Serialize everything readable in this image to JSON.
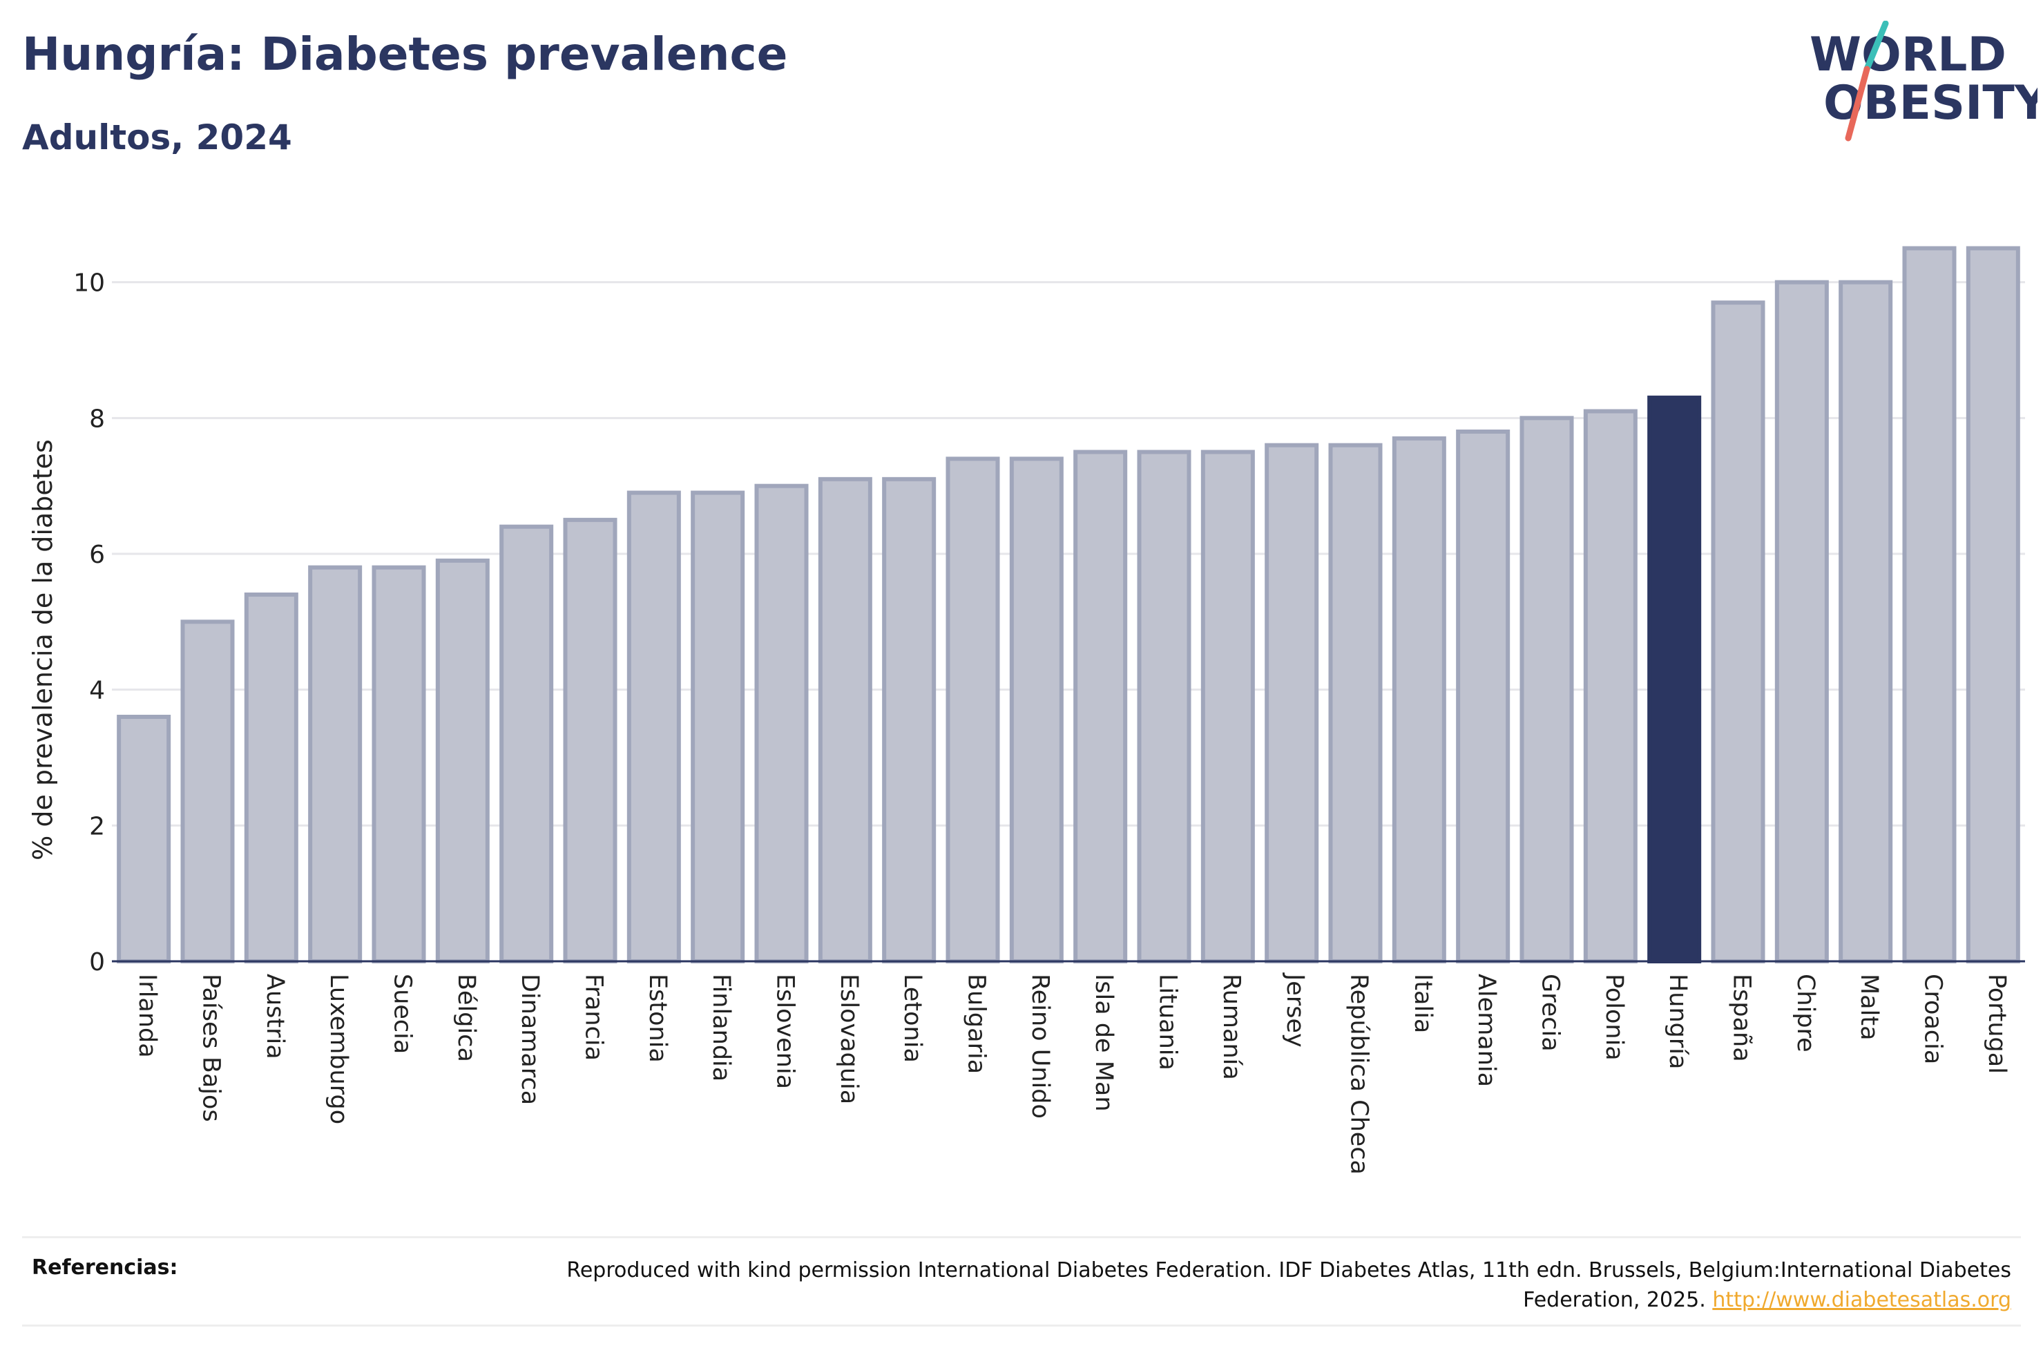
{
  "header": {
    "title": "Hungría: Diabetes prevalence",
    "subtitle": "Adultos, 2024"
  },
  "logo": {
    "line1": "WORLD",
    "line2": "OBESITY",
    "slash_colors": [
      "#3bbfb8",
      "#e8685a"
    ]
  },
  "chart_data": {
    "type": "bar",
    "categories": [
      "Irlanda",
      "Países Bajos",
      "Austria",
      "Luxemburgo",
      "Suecia",
      "Bélgica",
      "Dinamarca",
      "Francia",
      "Estonia",
      "Finlandia",
      "Eslovenia",
      "Eslovaquia",
      "Letonia",
      "Bulgaria",
      "Reino Unido",
      "Isla de Man",
      "Lituania",
      "Rumanía",
      "Jersey",
      "República Checa",
      "Italia",
      "Alemania",
      "Grecia",
      "Polonia",
      "Hungría",
      "España",
      "Chipre",
      "Malta",
      "Croacia",
      "Portugal"
    ],
    "values": [
      3.6,
      5.0,
      5.4,
      5.8,
      5.8,
      5.9,
      6.4,
      6.5,
      6.9,
      6.9,
      7.0,
      7.1,
      7.1,
      7.4,
      7.4,
      7.5,
      7.5,
      7.5,
      7.6,
      7.6,
      7.7,
      7.8,
      8.0,
      8.1,
      8.3,
      9.7,
      10.0,
      10.0,
      10.5,
      10.5
    ],
    "highlight": "Hungría",
    "ylabel": "% de prevalencia de la diabetes",
    "xlabel": "",
    "ylim": [
      0,
      10.8
    ],
    "yticks": [
      0,
      2,
      4,
      6,
      8,
      10
    ],
    "grid": true,
    "colors": {
      "bar": "#bfc2cf",
      "bar_edge": "#a0a6bb",
      "highlight": "#2b3661"
    }
  },
  "references": {
    "label": "Referencias:",
    "text": "Reproduced with kind permission International Diabetes Federation. IDF Diabetes Atlas, 11th edn. Brussels, Belgium:International Diabetes Federation, 2025.",
    "link": "http://www.diabetesatlas.org"
  }
}
